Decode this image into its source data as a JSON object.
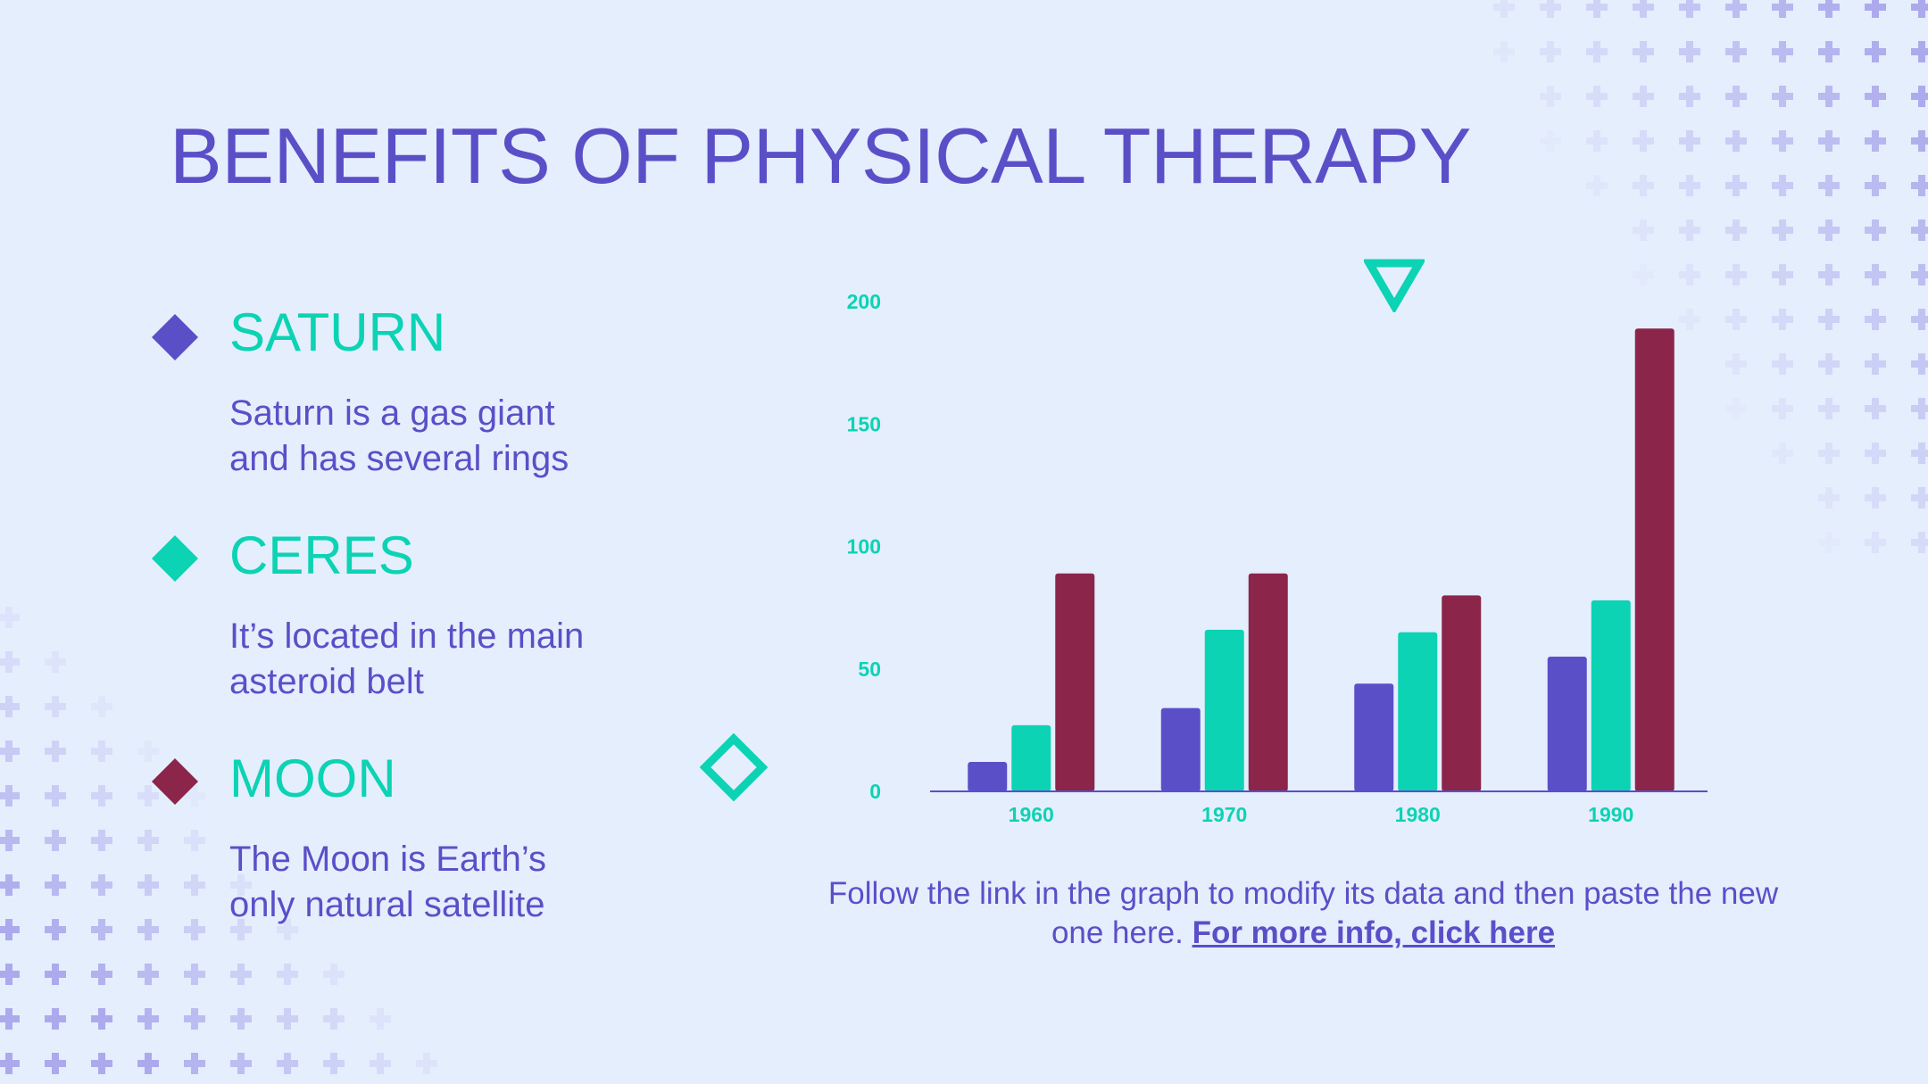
{
  "slide": {
    "title": "BENEFITS OF PHYSICAL THERAPY",
    "items": [
      {
        "heading": "SATURN",
        "desc_line1": "Saturn is a gas giant",
        "desc_line2": "and has several rings",
        "icon": "diamond-icon",
        "color": "#5b4fc8"
      },
      {
        "heading": "CERES",
        "desc_line1": "It’s located in the main",
        "desc_line2": "asteroid belt",
        "icon": "diamond-icon",
        "color": "#0bd3b4"
      },
      {
        "heading": "MOON",
        "desc_line1": "The Moon is Earth’s",
        "desc_line2": "only natural satellite",
        "icon": "diamond-icon",
        "color": "#8b2549"
      }
    ],
    "caption_text": "Follow the link in the graph to modify its data and then paste the new one here. ",
    "caption_link": "For more info, click here",
    "decorations": {
      "triangle": "triangle-outline-icon",
      "diamond": "diamond-outline-icon",
      "pattern": "plus-pattern"
    }
  },
  "colors": {
    "primary": "#5b4fc8",
    "accent": "#0bd3b4",
    "dark_accent": "#8b2549",
    "background": "#e5eefd"
  },
  "chart_data": {
    "type": "bar",
    "categories": [
      "1960",
      "1970",
      "1980",
      "1990"
    ],
    "series": [
      {
        "values": [
          12,
          34,
          44,
          55
        ],
        "color": "#5b4fc8"
      },
      {
        "values": [
          27,
          66,
          65,
          78
        ],
        "color": "#0bd3b4"
      },
      {
        "values": [
          89,
          89,
          80,
          189
        ],
        "color": "#8b2549"
      }
    ],
    "yticks": [
      0,
      50,
      100,
      150,
      200
    ],
    "ylim": [
      0,
      200
    ],
    "grid": false,
    "legend": "none"
  }
}
